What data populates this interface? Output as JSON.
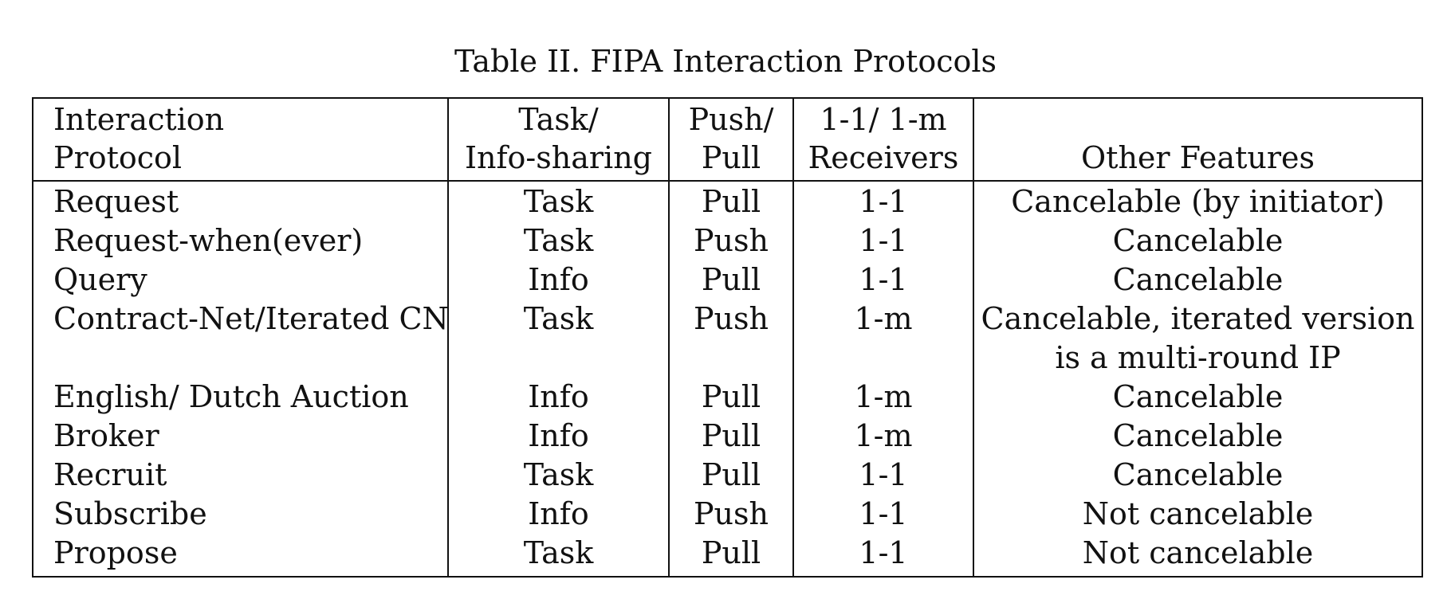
{
  "caption": "Table II.  FIPA Interaction Protocols",
  "header": {
    "col1_line1": "Interaction",
    "col1_line2": "Protocol",
    "col2_line1": "Task/",
    "col2_line2": "Info-sharing",
    "col3_line1": "Push/",
    "col3_line2": "Pull",
    "col4_line1": "1-1/ 1-m",
    "col4_line2": "Receivers",
    "col5_line1": "",
    "col5_line2": "Other Features"
  },
  "rows": [
    {
      "protocol": "Request",
      "task": "Task",
      "push": "Pull",
      "receivers": "1-1",
      "features": "Cancelable (by initiator)",
      "features2": ""
    },
    {
      "protocol": "Request-when(ever)",
      "task": "Task",
      "push": "Push",
      "receivers": "1-1",
      "features": "Cancelable",
      "features2": ""
    },
    {
      "protocol": "Query",
      "task": "Info",
      "push": "Pull",
      "receivers": "1-1",
      "features": "Cancelable",
      "features2": ""
    },
    {
      "protocol": "Contract-Net/Iterated CN",
      "task": "Task",
      "push": "Push",
      "receivers": "1-m",
      "features": "Cancelable, iterated version",
      "features2": "is a multi-round IP"
    },
    {
      "protocol": "English/ Dutch Auction",
      "task": "Info",
      "push": "Pull",
      "receivers": "1-m",
      "features": "Cancelable",
      "features2": ""
    },
    {
      "protocol": "Broker",
      "task": "Info",
      "push": "Pull",
      "receivers": "1-m",
      "features": "Cancelable",
      "features2": ""
    },
    {
      "protocol": "Recruit",
      "task": "Task",
      "push": "Pull",
      "receivers": "1-1",
      "features": "Cancelable",
      "features2": ""
    },
    {
      "protocol": "Subscribe",
      "task": "Info",
      "push": "Push",
      "receivers": "1-1",
      "features": "Not cancelable",
      "features2": ""
    },
    {
      "protocol": "Propose",
      "task": "Task",
      "push": "Pull",
      "receivers": "1-1",
      "features": "Not cancelable",
      "features2": ""
    }
  ]
}
